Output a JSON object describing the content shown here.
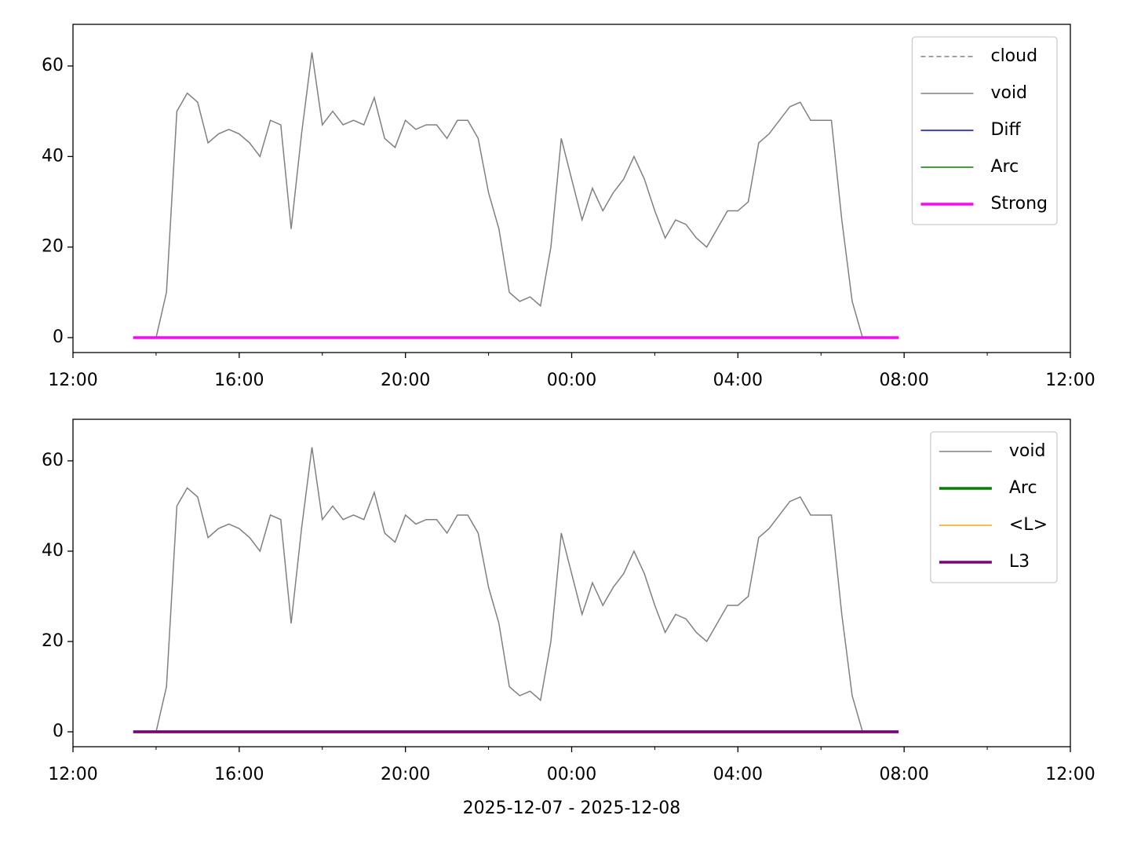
{
  "chart_data": [
    {
      "type": "line",
      "xlim": [
        "2025-12-07 12:00",
        "2025-12-08 12:00"
      ],
      "xticks": [
        {
          "value": "2025-12-07 12:00",
          "label": "12:00"
        },
        {
          "value": "2025-12-07 16:00",
          "label": "16:00"
        },
        {
          "value": "2025-12-07 20:00",
          "label": "20:00"
        },
        {
          "value": "2025-12-08 00:00",
          "label": "00:00"
        },
        {
          "value": "2025-12-08 04:00",
          "label": "04:00"
        },
        {
          "value": "2025-12-08 08:00",
          "label": "08:00"
        },
        {
          "value": "2025-12-08 12:00",
          "label": "12:00"
        }
      ],
      "xminorticks": [
        "2025-12-07 14:00",
        "2025-12-07 18:00",
        "2025-12-07 22:00",
        "2025-12-08 02:00",
        "2025-12-08 06:00",
        "2025-12-08 10:00"
      ],
      "ylim": [
        -3.3,
        69.2
      ],
      "yticks": [
        0,
        20,
        40,
        60
      ],
      "legend": "upper right",
      "series": [
        {
          "name": "cloud",
          "color": "#808080",
          "linestyle": "dashed",
          "linewidth": 1.5,
          "x": [
            "2025-12-07 13:27",
            "2025-12-08 07:52"
          ],
          "values": [
            0,
            0
          ]
        },
        {
          "name": "void",
          "color": "#808080",
          "linestyle": "solid",
          "linewidth": 1.5,
          "x": [
            "2025-12-07 13:30",
            "2025-12-07 13:45",
            "2025-12-07 14:00",
            "2025-12-07 14:15",
            "2025-12-07 14:30",
            "2025-12-07 14:45",
            "2025-12-07 15:00",
            "2025-12-07 15:15",
            "2025-12-07 15:30",
            "2025-12-07 15:45",
            "2025-12-07 16:00",
            "2025-12-07 16:15",
            "2025-12-07 16:30",
            "2025-12-07 16:45",
            "2025-12-07 17:00",
            "2025-12-07 17:15",
            "2025-12-07 17:30",
            "2025-12-07 17:45",
            "2025-12-07 18:00",
            "2025-12-07 18:15",
            "2025-12-07 18:30",
            "2025-12-07 18:45",
            "2025-12-07 19:00",
            "2025-12-07 19:15",
            "2025-12-07 19:30",
            "2025-12-07 19:45",
            "2025-12-07 20:00",
            "2025-12-07 20:15",
            "2025-12-07 20:30",
            "2025-12-07 20:45",
            "2025-12-07 21:00",
            "2025-12-07 21:15",
            "2025-12-07 21:30",
            "2025-12-07 21:45",
            "2025-12-07 22:00",
            "2025-12-07 22:15",
            "2025-12-07 22:30",
            "2025-12-07 22:45",
            "2025-12-07 23:00",
            "2025-12-07 23:15",
            "2025-12-07 23:30",
            "2025-12-07 23:45",
            "2025-12-08 00:00",
            "2025-12-08 00:15",
            "2025-12-08 00:30",
            "2025-12-08 00:45",
            "2025-12-08 01:00",
            "2025-12-08 01:15",
            "2025-12-08 01:30",
            "2025-12-08 01:45",
            "2025-12-08 02:00",
            "2025-12-08 02:15",
            "2025-12-08 02:30",
            "2025-12-08 02:45",
            "2025-12-08 03:00",
            "2025-12-08 03:15",
            "2025-12-08 03:30",
            "2025-12-08 03:45",
            "2025-12-08 04:00",
            "2025-12-08 04:15",
            "2025-12-08 04:30",
            "2025-12-08 04:45",
            "2025-12-08 05:00",
            "2025-12-08 05:15",
            "2025-12-08 05:30",
            "2025-12-08 05:45",
            "2025-12-08 06:00",
            "2025-12-08 06:15",
            "2025-12-08 06:30",
            "2025-12-08 06:45",
            "2025-12-08 07:00",
            "2025-12-08 07:15",
            "2025-12-08 07:30",
            "2025-12-08 07:45"
          ],
          "values": [
            0,
            0,
            0,
            10,
            50,
            54,
            52,
            43,
            45,
            46,
            45,
            43,
            40,
            48,
            47,
            24,
            45,
            63,
            47,
            50,
            47,
            48,
            47,
            53,
            44,
            42,
            48,
            46,
            47,
            47,
            44,
            48,
            48,
            44,
            32,
            24,
            10,
            8,
            9,
            7,
            20,
            44,
            35,
            26,
            33,
            28,
            32,
            35,
            40,
            35,
            28,
            22,
            26,
            25,
            22,
            20,
            24,
            28,
            28,
            30,
            43,
            45,
            48,
            51,
            52,
            48,
            48,
            48,
            26,
            8,
            0,
            0,
            0,
            0
          ]
        },
        {
          "name": "Diff",
          "color": "#0000ff",
          "linestyle": "solid",
          "linewidth": 1.5,
          "x": [
            "2025-12-07 13:27",
            "2025-12-08 07:52"
          ],
          "values": [
            0,
            0
          ]
        },
        {
          "name": "Arc",
          "color": "#008000",
          "linestyle": "solid",
          "linewidth": 1.5,
          "x": [
            "2025-12-07 13:27",
            "2025-12-08 07:52"
          ],
          "values": [
            0,
            0
          ]
        },
        {
          "name": "Strong",
          "color": "#ff00ff",
          "linestyle": "solid",
          "linewidth": 3.5,
          "x": [
            "2025-12-07 13:27",
            "2025-12-08 07:52"
          ],
          "values": [
            0,
            0
          ]
        }
      ]
    },
    {
      "type": "line",
      "xlabel": "2025-12-07 - 2025-12-08",
      "xlim": [
        "2025-12-07 12:00",
        "2025-12-08 12:00"
      ],
      "xticks": [
        {
          "value": "2025-12-07 12:00",
          "label": "12:00"
        },
        {
          "value": "2025-12-07 16:00",
          "label": "16:00"
        },
        {
          "value": "2025-12-07 20:00",
          "label": "20:00"
        },
        {
          "value": "2025-12-08 00:00",
          "label": "00:00"
        },
        {
          "value": "2025-12-08 04:00",
          "label": "04:00"
        },
        {
          "value": "2025-12-08 08:00",
          "label": "08:00"
        },
        {
          "value": "2025-12-08 12:00",
          "label": "12:00"
        }
      ],
      "xminorticks": [
        "2025-12-07 14:00",
        "2025-12-07 18:00",
        "2025-12-07 22:00",
        "2025-12-08 02:00",
        "2025-12-08 06:00",
        "2025-12-08 10:00"
      ],
      "ylim": [
        -3.3,
        69.2
      ],
      "yticks": [
        0,
        20,
        40,
        60
      ],
      "legend": "upper right",
      "series": [
        {
          "name": "void",
          "color": "#808080",
          "linestyle": "solid",
          "linewidth": 1.5,
          "x": [
            "2025-12-07 13:30",
            "2025-12-07 13:45",
            "2025-12-07 14:00",
            "2025-12-07 14:15",
            "2025-12-07 14:30",
            "2025-12-07 14:45",
            "2025-12-07 15:00",
            "2025-12-07 15:15",
            "2025-12-07 15:30",
            "2025-12-07 15:45",
            "2025-12-07 16:00",
            "2025-12-07 16:15",
            "2025-12-07 16:30",
            "2025-12-07 16:45",
            "2025-12-07 17:00",
            "2025-12-07 17:15",
            "2025-12-07 17:30",
            "2025-12-07 17:45",
            "2025-12-07 18:00",
            "2025-12-07 18:15",
            "2025-12-07 18:30",
            "2025-12-07 18:45",
            "2025-12-07 19:00",
            "2025-12-07 19:15",
            "2025-12-07 19:30",
            "2025-12-07 19:45",
            "2025-12-07 20:00",
            "2025-12-07 20:15",
            "2025-12-07 20:30",
            "2025-12-07 20:45",
            "2025-12-07 21:00",
            "2025-12-07 21:15",
            "2025-12-07 21:30",
            "2025-12-07 21:45",
            "2025-12-07 22:00",
            "2025-12-07 22:15",
            "2025-12-07 22:30",
            "2025-12-07 22:45",
            "2025-12-07 23:00",
            "2025-12-07 23:15",
            "2025-12-07 23:30",
            "2025-12-07 23:45",
            "2025-12-08 00:00",
            "2025-12-08 00:15",
            "2025-12-08 00:30",
            "2025-12-08 00:45",
            "2025-12-08 01:00",
            "2025-12-08 01:15",
            "2025-12-08 01:30",
            "2025-12-08 01:45",
            "2025-12-08 02:00",
            "2025-12-08 02:15",
            "2025-12-08 02:30",
            "2025-12-08 02:45",
            "2025-12-08 03:00",
            "2025-12-08 03:15",
            "2025-12-08 03:30",
            "2025-12-08 03:45",
            "2025-12-08 04:00",
            "2025-12-08 04:15",
            "2025-12-08 04:30",
            "2025-12-08 04:45",
            "2025-12-08 05:00",
            "2025-12-08 05:15",
            "2025-12-08 05:30",
            "2025-12-08 05:45",
            "2025-12-08 06:00",
            "2025-12-08 06:15",
            "2025-12-08 06:30",
            "2025-12-08 06:45",
            "2025-12-08 07:00",
            "2025-12-08 07:15",
            "2025-12-08 07:30",
            "2025-12-08 07:45"
          ],
          "values": [
            0,
            0,
            0,
            10,
            50,
            54,
            52,
            43,
            45,
            46,
            45,
            43,
            40,
            48,
            47,
            24,
            45,
            63,
            47,
            50,
            47,
            48,
            47,
            53,
            44,
            42,
            48,
            46,
            47,
            47,
            44,
            48,
            48,
            44,
            32,
            24,
            10,
            8,
            9,
            7,
            20,
            44,
            35,
            26,
            33,
            28,
            32,
            35,
            40,
            35,
            28,
            22,
            26,
            25,
            22,
            20,
            24,
            28,
            28,
            30,
            43,
            45,
            48,
            51,
            52,
            48,
            48,
            48,
            26,
            8,
            0,
            0,
            0,
            0
          ]
        },
        {
          "name": "Arc",
          "color": "#008000",
          "linestyle": "solid",
          "linewidth": 3.5,
          "x": [
            "2025-12-07 13:27",
            "2025-12-08 07:52"
          ],
          "values": [
            0,
            0
          ]
        },
        {
          "name": "<L>",
          "color": "#ffa500",
          "linestyle": "solid",
          "linewidth": 1.5,
          "x": [
            "2025-12-07 13:27",
            "2025-12-08 07:52"
          ],
          "values": [
            0,
            0
          ]
        },
        {
          "name": "L3",
          "color": "#800080",
          "linestyle": "solid",
          "linewidth": 3.5,
          "x": [
            "2025-12-07 13:27",
            "2025-12-08 07:52"
          ],
          "values": [
            0,
            0
          ]
        }
      ]
    }
  ]
}
